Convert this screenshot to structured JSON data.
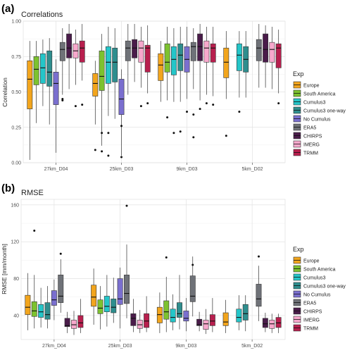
{
  "groups": [
    "27km_D04",
    "25km_D03",
    "9km_D03",
    "5km_D02"
  ],
  "legend_title": "Exp",
  "series": [
    {
      "name": "Europe",
      "color": "#F2A51D"
    },
    {
      "name": "South America",
      "color": "#7DC22F"
    },
    {
      "name": "Cumulus3",
      "color": "#24C6C9"
    },
    {
      "name": "Cumulus3 one-way",
      "color": "#2E8E8E"
    },
    {
      "name": "No Cumulus",
      "color": "#7A6FCF"
    },
    {
      "name": "ERA5",
      "color": "#6F7278"
    },
    {
      "name": "CHIRPS",
      "color": "#4A1C4A"
    },
    {
      "name": "IMERG",
      "color": "#F7A8CC"
    },
    {
      "name": "TRMM",
      "color": "#B81F4E"
    }
  ],
  "chart_data": [
    {
      "panel_label": "(a)",
      "type": "box",
      "title": "Correlations",
      "xlabel": "",
      "ylabel": "Correlation",
      "ylim": [
        0,
        1.0
      ],
      "yticks": [
        0,
        0.25,
        0.5,
        0.75,
        1.0
      ],
      "ytick_labels": [
        "0.00",
        "0.25",
        "0.50",
        "0.75",
        "1.00"
      ],
      "categories": [
        "27km_D04",
        "25km_D03",
        "9km_D03",
        "5km_D02"
      ],
      "legend": "right",
      "grid": true,
      "series": [
        {
          "name": "Europe",
          "boxes": [
            [
              0.02,
              0.38,
              0.59,
              0.72,
              0.86
            ],
            [
              0.27,
              0.47,
              0.56,
              0.63,
              0.72
            ],
            [
              0.43,
              0.58,
              0.69,
              0.77,
              0.86
            ],
            [
              0.45,
              0.6,
              0.71,
              0.81,
              0.93
            ]
          ],
          "outliers": [
            [],
            [
              0.09
            ],
            [],
            [
              0.19
            ]
          ]
        },
        {
          "name": "South America",
          "boxes": [
            [
              0.28,
              0.55,
              0.66,
              0.75,
              0.86
            ],
            [
              0.12,
              0.51,
              0.61,
              0.79,
              0.91
            ],
            [
              0.44,
              0.64,
              0.71,
              0.84,
              0.96
            ],
            null
          ],
          "outliers": [
            [],
            [
              0.21,
              0.08
            ],
            [
              0.32
            ],
            []
          ]
        },
        {
          "name": "Cumulus3",
          "boxes": [
            [
              0.4,
              0.56,
              0.67,
              0.77,
              0.87
            ],
            [
              0.33,
              0.56,
              0.71,
              0.82,
              0.96
            ],
            [
              0.43,
              0.62,
              0.73,
              0.82,
              0.95
            ],
            [
              0.46,
              0.65,
              0.76,
              0.84,
              0.93
            ]
          ],
          "outliers": [
            [],
            [
              0.21,
              0.05
            ],
            [
              0.21
            ],
            [
              0.36
            ]
          ]
        },
        {
          "name": "Cumulus3 one-way",
          "boxes": [
            [
              0.27,
              0.54,
              0.64,
              0.79,
              0.88
            ],
            [
              0.31,
              0.57,
              0.71,
              0.81,
              0.95
            ],
            [
              0.43,
              0.65,
              0.76,
              0.84,
              0.96
            ],
            [
              0.46,
              0.64,
              0.73,
              0.82,
              0.93
            ]
          ],
          "outliers": [
            [],
            [],
            [
              0.22
            ],
            []
          ]
        },
        {
          "name": "No Cumulus",
          "boxes": [
            [
              0.07,
              0.41,
              0.56,
              0.64,
              0.73
            ],
            [
              0.05,
              0.34,
              0.45,
              0.59,
              0.66
            ],
            [
              0.45,
              0.64,
              0.73,
              0.82,
              0.96
            ],
            null
          ],
          "outliers": [
            [],
            [
              0.26,
              0.04
            ],
            [
              0.36
            ],
            []
          ]
        },
        {
          "name": "ERA5",
          "boxes": [
            [
              0.48,
              0.72,
              0.8,
              0.85,
              0.95
            ],
            [
              0.48,
              0.72,
              0.81,
              0.86,
              0.98
            ],
            [
              0.52,
              0.72,
              0.82,
              0.85,
              0.95
            ],
            [
              0.53,
              0.72,
              0.81,
              0.87,
              0.98
            ]
          ],
          "outliers": [
            [
              0.44,
              0.45
            ],
            [],
            [
              0.34,
              0.18
            ],
            []
          ]
        },
        {
          "name": "CHIRPS",
          "boxes": [
            [
              0.52,
              0.74,
              0.81,
              0.91,
              0.98
            ],
            [
              0.57,
              0.74,
              0.81,
              0.87,
              0.98
            ],
            [
              0.44,
              0.72,
              0.82,
              0.91,
              0.98
            ],
            [
              0.53,
              0.71,
              0.8,
              0.91,
              0.97
            ]
          ],
          "outliers": [
            [],
            [],
            [
              0.38
            ],
            []
          ]
        },
        {
          "name": "IMERG",
          "boxes": [
            [
              0.55,
              0.74,
              0.79,
              0.84,
              0.94
            ],
            [
              0.53,
              0.71,
              0.81,
              0.86,
              0.96
            ],
            [
              0.48,
              0.71,
              0.81,
              0.86,
              0.96
            ],
            [
              0.52,
              0.71,
              0.8,
              0.85,
              0.96
            ]
          ],
          "outliers": [
            [
              0.4
            ],
            [
              0.4
            ],
            [
              0.42
            ],
            []
          ]
        },
        {
          "name": "TRMM",
          "boxes": [
            [
              0.58,
              0.71,
              0.81,
              0.86,
              0.98
            ],
            [
              0.49,
              0.64,
              0.81,
              0.83,
              0.97
            ],
            [
              0.47,
              0.71,
              0.81,
              0.84,
              0.96
            ],
            [
              0.49,
              0.67,
              0.81,
              0.84,
              0.94
            ]
          ],
          "outliers": [
            [
              0.41
            ],
            [
              0.42
            ],
            [
              0.41
            ],
            [
              0.42
            ]
          ]
        }
      ]
    },
    {
      "panel_label": "(b)",
      "type": "box",
      "title": "RMSE",
      "xlabel": "",
      "ylabel": "RMSE [mm/month]",
      "ylim": [
        14,
        166
      ],
      "yticks": [
        40,
        80,
        120,
        160
      ],
      "ytick_labels": [
        "40",
        "80",
        "120",
        "160"
      ],
      "categories": [
        "27km_D04",
        "25km_D03",
        "9km_D03",
        "5km_D02"
      ],
      "legend": "right",
      "grid": true,
      "series": [
        {
          "name": "Europe",
          "boxes": [
            [
              24,
              41,
              49,
              62,
              86
            ],
            [
              30,
              50,
              60,
              73,
              91
            ],
            [
              21,
              32,
              41,
              49,
              65
            ],
            [
              21,
              29,
              33,
              43,
              57
            ]
          ],
          "outliers": [
            [],
            [],
            [],
            []
          ]
        },
        {
          "name": "South America",
          "boxes": [
            [
              26,
              39,
              45,
              55,
              84
            ],
            [
              25,
              42,
              48,
              57,
              72
            ],
            [
              22,
              36,
              44,
              56,
              82
            ],
            null
          ],
          "outliers": [
            [
              132
            ],
            [],
            [
              103
            ],
            []
          ]
        },
        {
          "name": "Cumulus3",
          "boxes": [
            [
              27,
              38,
              44,
              52,
              70
            ],
            [
              28,
              44,
              50,
              61,
              84
            ],
            [
              24,
              33,
              38,
              47,
              63
            ],
            [
              24,
              33,
              38,
              47,
              62
            ]
          ],
          "outliers": [
            [],
            [],
            [],
            []
          ]
        },
        {
          "name": "Cumulus3 one-way",
          "boxes": [
            [
              26,
              36,
              41,
              54,
              72
            ],
            [
              32,
              43,
              49,
              58,
              81
            ],
            [
              25,
              38,
              42,
              54,
              84
            ],
            [
              23,
              35,
              42,
              52,
              62
            ]
          ],
          "outliers": [
            [],
            [],
            [],
            []
          ]
        },
        {
          "name": "No Cumulus",
          "boxes": [
            [
              35,
              51,
              57,
              67,
              79
            ],
            [
              26,
              52,
              58,
              80,
              92
            ],
            [
              23,
              34,
              37,
              45,
              59
            ],
            null
          ],
          "outliers": [
            [],
            [],
            [],
            []
          ]
        },
        {
          "name": "ERA5",
          "boxes": [
            [
              43,
              54,
              61,
              84,
              101
            ],
            [
              37,
              53,
              64,
              84,
              117
            ],
            [
              39,
              55,
              61,
              83,
              104
            ],
            [
              34,
              50,
              58,
              74,
              94
            ]
          ],
          "outliers": [
            [
              107
            ],
            [
              159
            ],
            [
              95
            ],
            [
              104
            ]
          ]
        },
        {
          "name": "CHIRPS",
          "boxes": [
            [
              21,
              28,
              29,
              37,
              44
            ],
            [
              22,
              29,
              37,
              42,
              58
            ],
            [
              23,
              29,
              30,
              36,
              44
            ],
            [
              22,
              27,
              31,
              37,
              43
            ]
          ],
          "outliers": [
            [],
            [],
            [],
            []
          ]
        },
        {
          "name": "IMERG",
          "boxes": [
            [
              19,
              26,
              30,
              35,
              45
            ],
            [
              21,
              26,
              30,
              35,
              46
            ],
            [
              20,
              25,
              31,
              35,
              47
            ],
            [
              21,
              26,
              31,
              35,
              42
            ]
          ],
          "outliers": [
            [],
            [],
            [],
            []
          ]
        },
        {
          "name": "TRMM",
          "boxes": [
            [
              21,
              27,
              32,
              40,
              58
            ],
            [
              22,
              27,
              34,
              42,
              61
            ],
            [
              22,
              29,
              34,
              41,
              59
            ],
            [
              21,
              27,
              32,
              38,
              42
            ]
          ],
          "outliers": [
            [],
            [],
            [],
            []
          ]
        }
      ]
    }
  ]
}
